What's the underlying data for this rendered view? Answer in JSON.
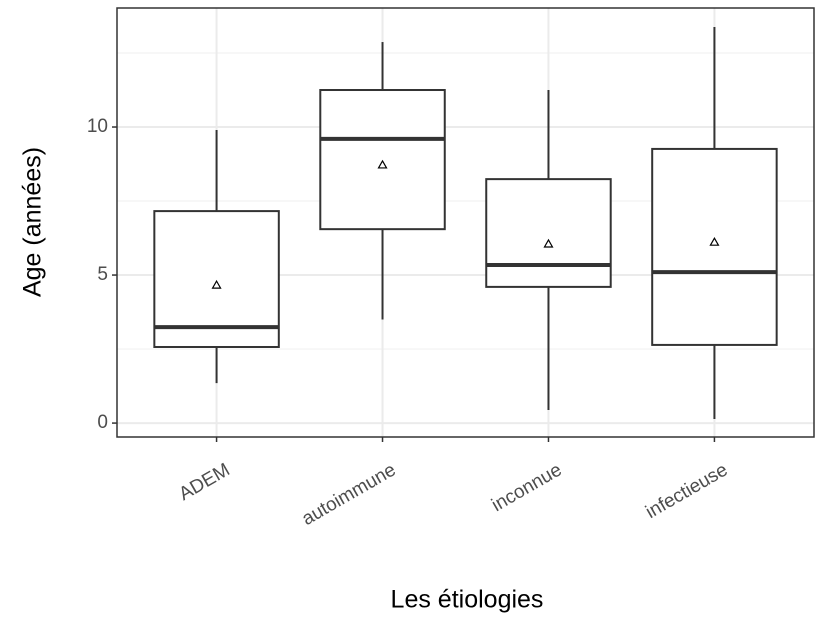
{
  "chart_data": {
    "type": "boxplot",
    "xlabel": "Les étiologies",
    "ylabel": "Age (années)",
    "categories": [
      "ADEM",
      "autoimmune",
      "inconnue",
      "infectieuse"
    ],
    "boxes": [
      {
        "min": 1.35,
        "q1": 2.57,
        "median": 3.24,
        "q3": 7.16,
        "max": 9.9,
        "mean": 4.66
      },
      {
        "min": 3.5,
        "q1": 6.55,
        "median": 9.6,
        "q3": 11.25,
        "max": 12.87,
        "mean": 8.72
      },
      {
        "min": 0.44,
        "q1": 4.6,
        "median": 5.34,
        "q3": 8.24,
        "max": 11.25,
        "mean": 6.05
      },
      {
        "min": 0.14,
        "q1": 2.64,
        "median": 5.1,
        "q3": 9.26,
        "max": 13.38,
        "mean": 6.11
      }
    ],
    "ylim": [
      -0.47,
      14.02
    ],
    "yticks": [
      0,
      5,
      10
    ],
    "yticks_minor": [
      2.5,
      7.5,
      12.5
    ],
    "grid": true,
    "color": "#333333"
  }
}
